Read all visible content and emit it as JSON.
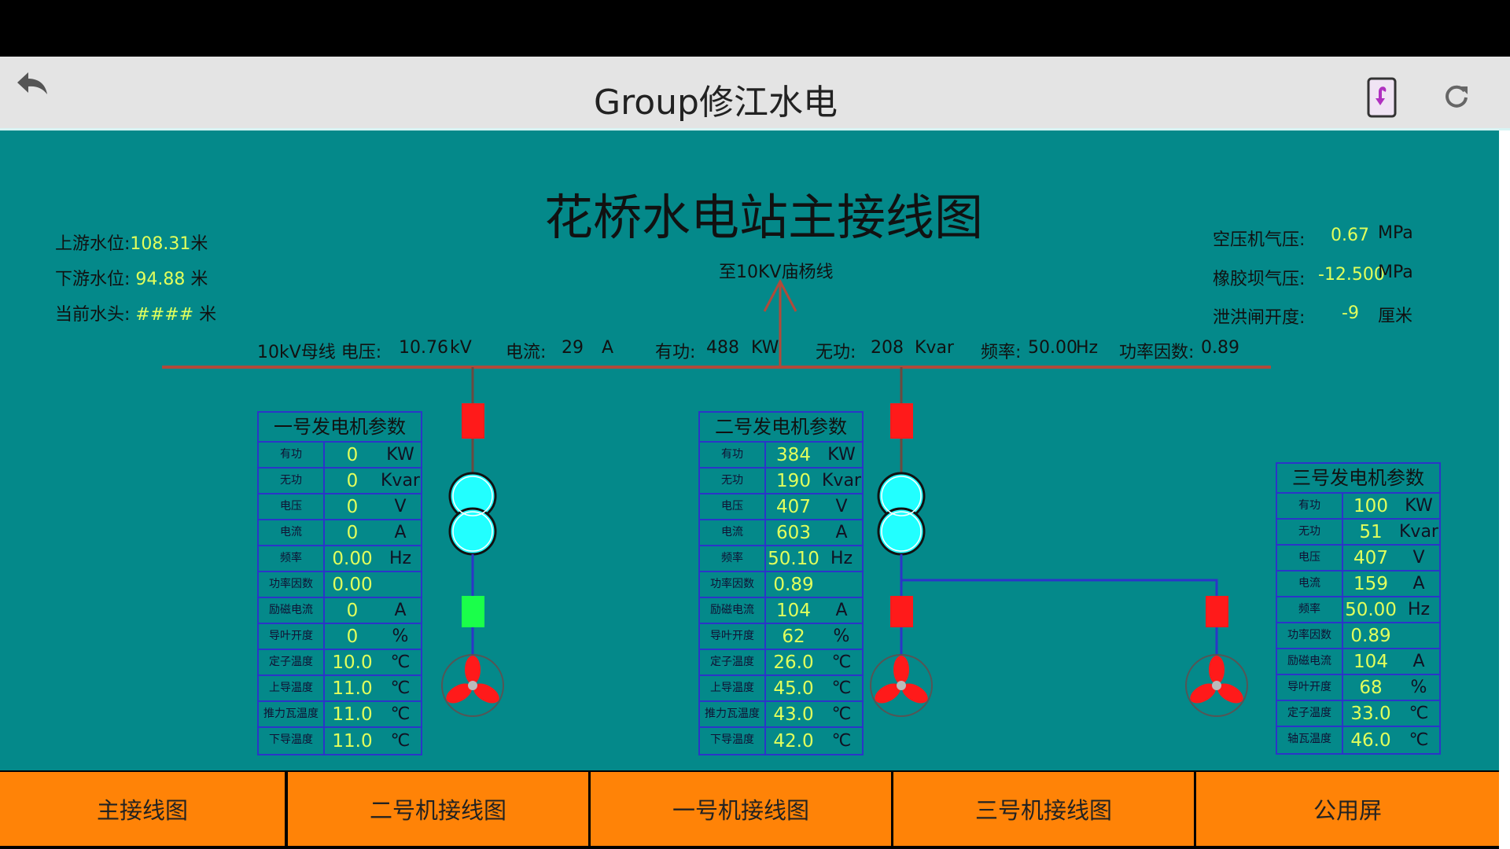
{
  "header": {
    "title": "Group修江水电",
    "back_icon": "back-arrow-icon",
    "rotate_icon": "screen-rotate-icon",
    "refresh_icon": "refresh-icon"
  },
  "page": {
    "title": "花桥水电站主接线图",
    "line_label": "至10KV庙杨线"
  },
  "water": [
    {
      "label": "上游水位:",
      "value": "108.31",
      "unit": "米"
    },
    {
      "label": "下游水位:",
      "value": "94.88",
      "unit": "米"
    },
    {
      "label": "当前水头:",
      "value": "####",
      "unit": "米"
    }
  ],
  "misc": [
    {
      "label": "空压机气压:",
      "value": "0.67",
      "unit": "MPa"
    },
    {
      "label": "橡胶坝气压:",
      "value": "-12.500",
      "unit": "MPa"
    },
    {
      "label": "泄洪闸开度:",
      "value": "-9",
      "unit": "厘米"
    }
  ],
  "bus": {
    "name": "10kV母线 电压:",
    "voltage": "10.76",
    "voltage_unit": "kV",
    "current_label": "电流:",
    "current": "29",
    "current_unit": "A",
    "active_label": "有功:",
    "active": "488",
    "active_unit": "KW",
    "reactive_label": "无功:",
    "reactive": "208",
    "reactive_unit": "Kvar",
    "freq_label": "频率:",
    "freq": "50.00",
    "freq_unit": "Hz",
    "pf_label": "功率因数:",
    "pf": "0.89"
  },
  "generators": [
    {
      "title": "一号发电机参数",
      "rows": [
        {
          "label": "有功",
          "value": "0",
          "unit": "KW"
        },
        {
          "label": "无功",
          "value": "0",
          "unit": "Kvar"
        },
        {
          "label": "电压",
          "value": "0",
          "unit": "V"
        },
        {
          "label": "电流",
          "value": "0",
          "unit": "A"
        },
        {
          "label": "频率",
          "value": "0.00",
          "unit": "Hz"
        },
        {
          "label": "功率因数",
          "value": "0.00",
          "unit": ""
        },
        {
          "label": "励磁电流",
          "value": "0",
          "unit": "A"
        },
        {
          "label": "导叶开度",
          "value": "0",
          "unit": "%"
        },
        {
          "label": "定子温度",
          "value": "10.0",
          "unit": "℃"
        },
        {
          "label": "上导温度",
          "value": "11.0",
          "unit": "℃"
        },
        {
          "label": "推力瓦温度",
          "value": "11.0",
          "unit": "℃"
        },
        {
          "label": "下导温度",
          "value": "11.0",
          "unit": "℃"
        }
      ]
    },
    {
      "title": "二号发电机参数",
      "rows": [
        {
          "label": "有功",
          "value": "384",
          "unit": "KW"
        },
        {
          "label": "无功",
          "value": "190",
          "unit": "Kvar"
        },
        {
          "label": "电压",
          "value": "407",
          "unit": "V"
        },
        {
          "label": "电流",
          "value": "603",
          "unit": "A"
        },
        {
          "label": "频率",
          "value": "50.10",
          "unit": "Hz"
        },
        {
          "label": "功率因数",
          "value": "0.89",
          "unit": ""
        },
        {
          "label": "励磁电流",
          "value": "104",
          "unit": "A"
        },
        {
          "label": "导叶开度",
          "value": "62",
          "unit": "%"
        },
        {
          "label": "定子温度",
          "value": "26.0",
          "unit": "℃"
        },
        {
          "label": "上导温度",
          "value": "45.0",
          "unit": "℃"
        },
        {
          "label": "推力瓦温度",
          "value": "43.0",
          "unit": "℃"
        },
        {
          "label": "下导温度",
          "value": "42.0",
          "unit": "℃"
        }
      ]
    },
    {
      "title": "三号发电机参数",
      "rows": [
        {
          "label": "有功",
          "value": "100",
          "unit": "KW"
        },
        {
          "label": "无功",
          "value": "51",
          "unit": "Kvar"
        },
        {
          "label": "电压",
          "value": "407",
          "unit": "V"
        },
        {
          "label": "电流",
          "value": "159",
          "unit": "A"
        },
        {
          "label": "频率",
          "value": "50.00",
          "unit": "Hz"
        },
        {
          "label": "功率因数",
          "value": "0.89",
          "unit": ""
        },
        {
          "label": "励磁电流",
          "value": "104",
          "unit": "A"
        },
        {
          "label": "导叶开度",
          "value": "68",
          "unit": "%"
        },
        {
          "label": "定子温度",
          "value": "33.0",
          "unit": "℃"
        },
        {
          "label": "轴瓦温度",
          "value": "46.0",
          "unit": "℃"
        }
      ]
    }
  ],
  "breaker_states": {
    "gen1_main": "closed",
    "gen1_gen": "open",
    "gen2_main": "closed",
    "gen2_gen": "closed",
    "gen3_gen": "closed"
  },
  "colors": {
    "closed": "#ff1a1a",
    "open": "#1aff4a",
    "value": "#e2ff5c",
    "background": "#04898a",
    "tab": "#ff8307"
  },
  "tabs": [
    {
      "label": "主接线图"
    },
    {
      "label": "二号机接线图"
    },
    {
      "label": "一号机接线图"
    },
    {
      "label": "三号机接线图"
    },
    {
      "label": "公用屏"
    }
  ]
}
